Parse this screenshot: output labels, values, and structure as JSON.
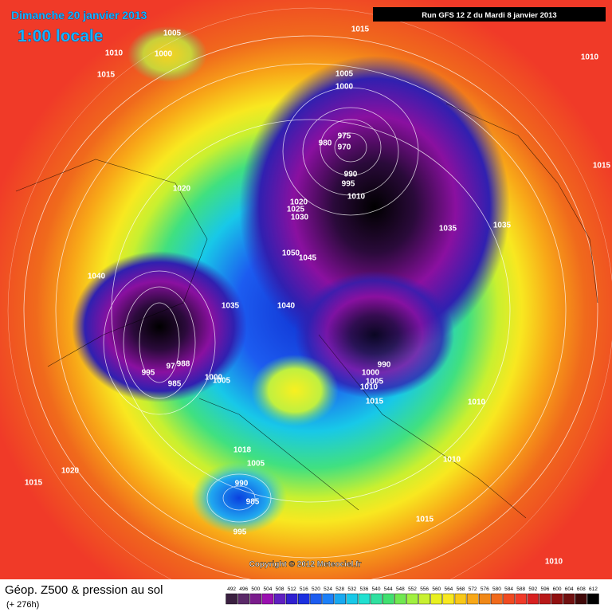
{
  "header": {
    "valid_date": "Dimanche 20 janvier 2013",
    "local_time": "1:00 locale",
    "run": "Run GFS 12 Z du Mardi 8 janvier 2013"
  },
  "copyright": "Copyright © 2012 Meteociel.fr",
  "footer": {
    "title": "Géop. Z500 & pression au sol",
    "step": "(+ 276h)"
  },
  "isobar_labels": [
    "1005",
    "1010",
    "1000",
    "1015",
    "1015",
    "1010",
    "1005",
    "1000",
    "975",
    "980",
    "970",
    "990",
    "995",
    "1010",
    "1015",
    "1020",
    "1020",
    "1025",
    "1030",
    "1035",
    "1035",
    "1050",
    "1045",
    "1040",
    "1035",
    "1040",
    "990",
    "995",
    "97",
    "988",
    "985",
    "1000",
    "1005",
    "1000",
    "1005",
    "1010",
    "1015",
    "1010",
    "1010",
    "1018",
    "1005",
    "990",
    "985",
    "995",
    "1020",
    "1015",
    "1015",
    "1010"
  ],
  "legend": {
    "labels": [
      492,
      496,
      500,
      504,
      508,
      512,
      516,
      520,
      524,
      528,
      532,
      536,
      540,
      544,
      548,
      552,
      556,
      560,
      564,
      568,
      572,
      576,
      580,
      584,
      588,
      592,
      596,
      600,
      604,
      608,
      612
    ],
    "colors": [
      "#3a2040",
      "#5a2868",
      "#7a1c8c",
      "#9a10b0",
      "#6020c0",
      "#3020d0",
      "#1c30e0",
      "#1c5cf0",
      "#1c80f8",
      "#18a8f0",
      "#18c8e8",
      "#20e0d0",
      "#30e0a0",
      "#40e070",
      "#70e850",
      "#a0f040",
      "#c8f030",
      "#e8f020",
      "#f8e820",
      "#f8c818",
      "#f8a818",
      "#f08818",
      "#f06a1c",
      "#f04a20",
      "#f03a28",
      "#d82020",
      "#b81818",
      "#901010",
      "#701010",
      "#400808",
      "#000000"
    ]
  }
}
